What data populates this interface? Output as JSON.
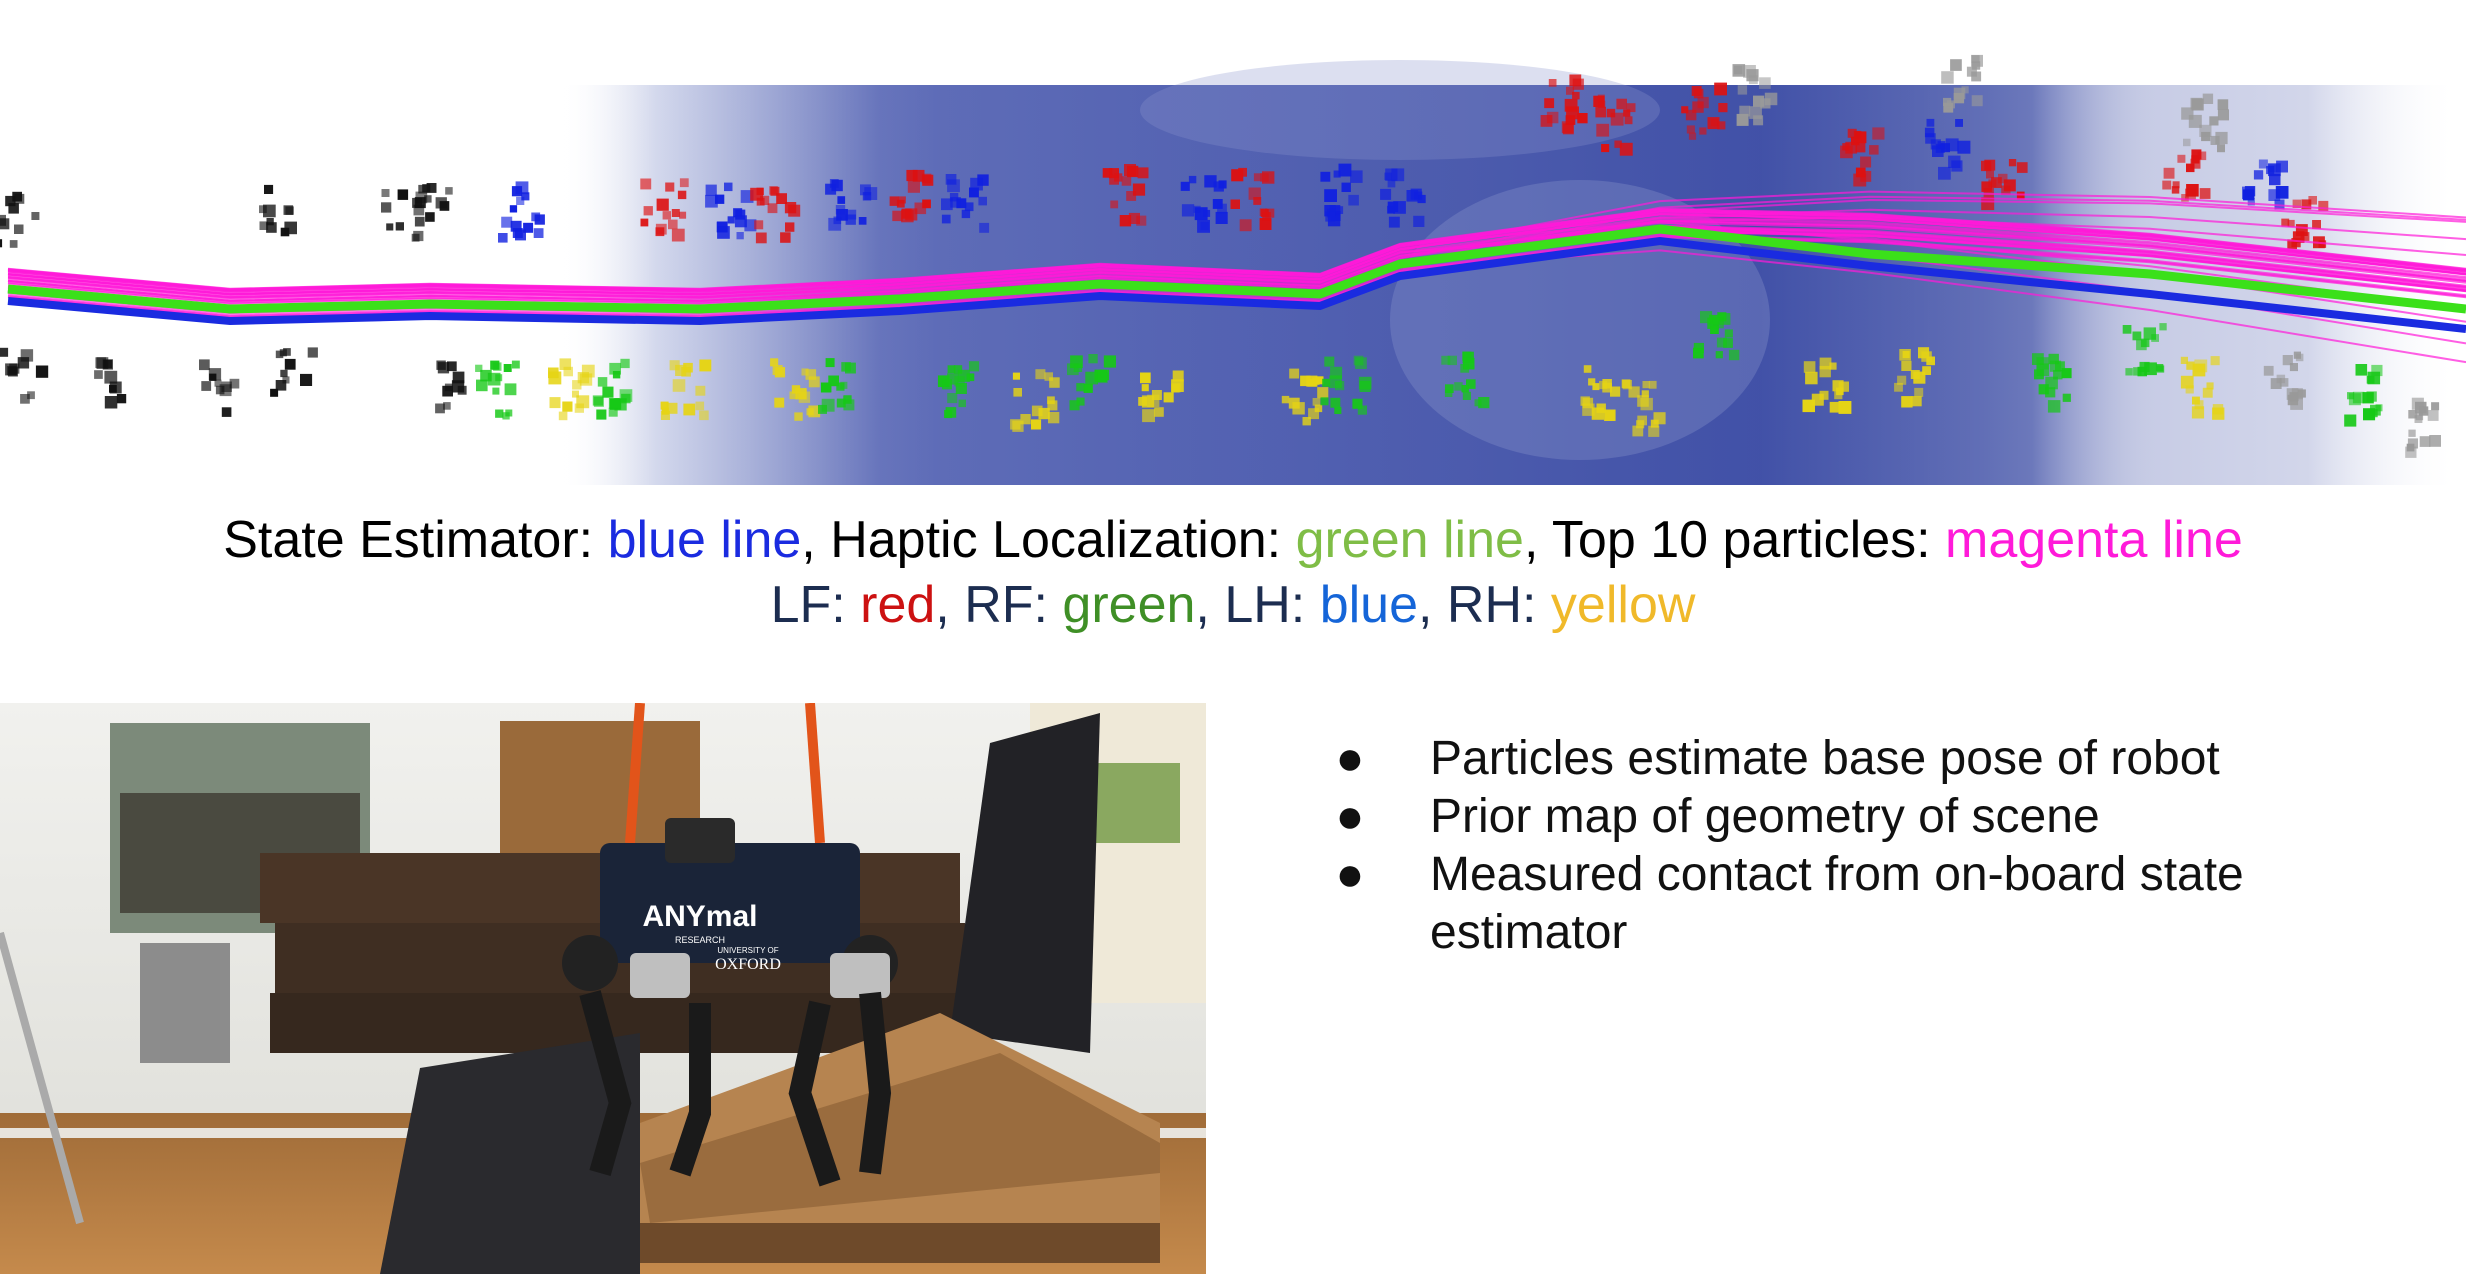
{
  "caption_line1": {
    "state_label": "State Estimator: ",
    "state_color_text": "blue line",
    "sep1": ", ",
    "haptic_label": "Haptic Localization: ",
    "haptic_color_text": "green line",
    "sep2": ", ",
    "particles_label": "Top 10 particles: ",
    "particles_color_text": "magenta line"
  },
  "caption_line2": {
    "lf_label": "LF: ",
    "lf_color": "red",
    "sep1": ", ",
    "rf_label": "RF: ",
    "rf_color": "green",
    "sep2": ", ",
    "lh_label": "LH: ",
    "lh_color": "blue",
    "sep3": ", ",
    "rh_label": "RH: ",
    "rh_color": "yellow"
  },
  "bullets": [
    {
      "marker": "●",
      "text": "Particles estimate base pose of robot"
    },
    {
      "marker": "●",
      "text": "Prior map of geometry of scene"
    },
    {
      "marker": "●",
      "text": "Measured contact from on-board state estimator"
    }
  ],
  "photo": {
    "robot_logo": "ANYmal",
    "robot_logo_sub": "RESEARCH",
    "university_small": "UNIVERSITY OF",
    "university_big": "OXFORD"
  },
  "colors": {
    "state_estimator": "#1a2be0",
    "haptic": "#3be01a",
    "particles": "#ff1ad9",
    "lf": "#dd1111",
    "rf": "#16c816",
    "lh": "#1020e0",
    "rh": "#e6d414",
    "map": "#3f4fa6"
  }
}
